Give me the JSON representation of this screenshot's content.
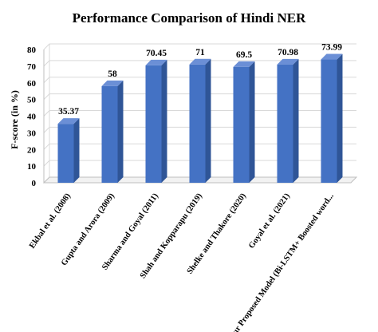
{
  "chart_data": {
    "type": "bar",
    "title": "Performance Comparison of Hindi NER",
    "ylabel": "F-score (in %)",
    "xlabel": "",
    "ylim": [
      0,
      80
    ],
    "yticks": [
      0,
      10,
      20,
      30,
      40,
      50,
      60,
      70,
      80
    ],
    "grid": true,
    "three_d": true,
    "categories": [
      "Ekbal et al. (2008)",
      "Gupta and Arora (2009)",
      "Sharma and Goyal (2011)",
      "Shah and Kopparapu (2019)",
      "Shelke and Thakore (2020)",
      "Goyal et al. (2021)",
      "Our Proposed Model (Bi-LSTM+ Boosted word..."
    ],
    "values": [
      35.37,
      58,
      70.45,
      71,
      69.5,
      70.98,
      73.99
    ],
    "data_labels": [
      "35.37",
      "58",
      "70.45",
      "71",
      "69.5",
      "70.98",
      "73.99"
    ],
    "colors": {
      "bar_front": "#4472C4",
      "bar_side": "#2F5597",
      "bar_top": "#6B8FD6",
      "grid": "#D9D9D9",
      "wall": "#BFBFBF"
    }
  }
}
